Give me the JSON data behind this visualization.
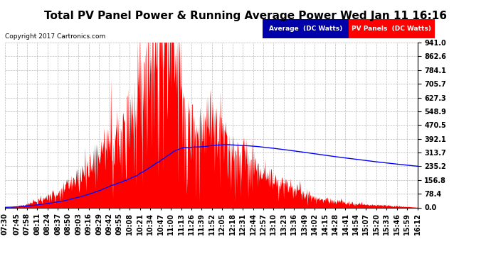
{
  "title": "Total PV Panel Power & Running Average Power Wed Jan 11 16:16",
  "copyright": "Copyright 2017 Cartronics.com",
  "ylabel_values": [
    0.0,
    78.4,
    156.8,
    235.2,
    313.7,
    392.1,
    470.5,
    548.9,
    627.3,
    705.7,
    784.1,
    862.6,
    941.0
  ],
  "ymax": 941.0,
  "ymin": 0.0,
  "legend_avg_label": "Average  (DC Watts)",
  "legend_pv_label": "PV Panels  (DC Watts)",
  "avg_color": "#0000ff",
  "pv_color": "#ff0000",
  "avg_legend_bg": "#0000aa",
  "pv_legend_bg": "#cc0000",
  "background_color": "#ffffff",
  "grid_color": "#aaaaaa",
  "title_fontsize": 11,
  "tick_label_fontsize": 7,
  "time_labels": [
    "07:30",
    "07:45",
    "07:58",
    "08:11",
    "08:24",
    "08:37",
    "08:50",
    "09:03",
    "09:16",
    "09:29",
    "09:42",
    "09:55",
    "10:08",
    "10:21",
    "10:34",
    "10:47",
    "11:00",
    "11:13",
    "11:26",
    "11:39",
    "11:52",
    "12:05",
    "12:18",
    "12:31",
    "12:44",
    "12:57",
    "13:10",
    "13:23",
    "13:36",
    "13:49",
    "14:02",
    "14:15",
    "14:28",
    "14:41",
    "14:54",
    "15:07",
    "15:20",
    "15:33",
    "15:46",
    "15:59",
    "16:12"
  ]
}
